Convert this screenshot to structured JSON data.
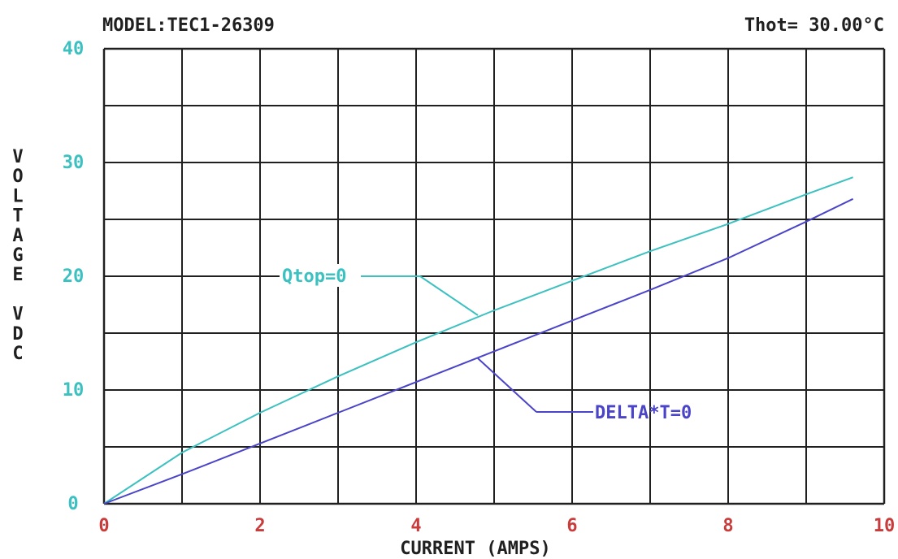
{
  "header": {
    "model": "MODEL:TEC1-26309",
    "thot": "Thot= 30.00°C"
  },
  "chart_data": {
    "type": "line",
    "xlabel": "CURRENT (AMPS)",
    "ylabel": "VOLTAGE VDC",
    "xlim": [
      0,
      10
    ],
    "ylim": [
      0,
      40
    ],
    "xticks": [
      "0",
      "2",
      "4",
      "6",
      "8",
      "10"
    ],
    "yticks": [
      "0",
      "10",
      "20",
      "30",
      "40"
    ],
    "grid": true,
    "series": [
      {
        "name": "Qtop=0",
        "color": "#3cc0c0",
        "x": [
          0,
          1,
          2,
          3,
          4,
          5,
          6,
          7,
          8,
          9,
          9.6
        ],
        "y": [
          0,
          4.5,
          8.0,
          11.2,
          14.2,
          17.0,
          19.6,
          22.2,
          24.6,
          27.2,
          28.7
        ]
      },
      {
        "name": "DELTA*T=0",
        "color": "#4a44c8",
        "x": [
          0,
          1,
          2,
          3,
          4,
          5,
          6,
          7,
          8,
          9,
          9.6
        ],
        "y": [
          0,
          2.6,
          5.3,
          8.0,
          10.7,
          13.4,
          16.1,
          18.8,
          21.6,
          24.8,
          26.8
        ]
      }
    ],
    "annotations": [
      {
        "text": "Qtop=0",
        "series": 0
      },
      {
        "text": "DELTA*T=0",
        "series": 1
      }
    ],
    "colors": {
      "axis_tick_y": "#3cc0c0",
      "axis_tick_x": "#c83c3c",
      "grid": "#202020",
      "text": "#202020"
    }
  }
}
